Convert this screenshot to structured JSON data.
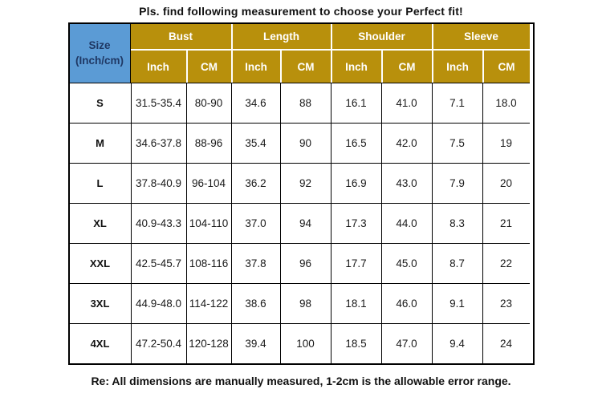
{
  "title": "Pls. find following measurement to choose your Perfect fit!",
  "footer_note": "Re: All dimensions are manually measured, 1-2cm is the allowable error range.",
  "colors": {
    "header_gold": "#B8900C",
    "size_cell_blue": "#5B9BD5",
    "size_cell_text": "#1F3864",
    "grid_border": "#000000",
    "header_separator": "#ffffff"
  },
  "table": {
    "size_label": "Size",
    "size_sublabel": "(Inch/cm)",
    "groups": [
      {
        "label": "Bust"
      },
      {
        "label": "Length"
      },
      {
        "label": "Shoulder"
      },
      {
        "label": "Sleeve"
      }
    ],
    "subheaders": [
      "Inch",
      "CM"
    ],
    "rows": [
      {
        "size": "S",
        "values": [
          "31.5-35.4",
          "80-90",
          "34.6",
          "88",
          "16.1",
          "41.0",
          "7.1",
          "18.0"
        ]
      },
      {
        "size": "M",
        "values": [
          "34.6-37.8",
          "88-96",
          "35.4",
          "90",
          "16.5",
          "42.0",
          "7.5",
          "19"
        ]
      },
      {
        "size": "L",
        "values": [
          "37.8-40.9",
          "96-104",
          "36.2",
          "92",
          "16.9",
          "43.0",
          "7.9",
          "20"
        ]
      },
      {
        "size": "XL",
        "values": [
          "40.9-43.3",
          "104-110",
          "37.0",
          "94",
          "17.3",
          "44.0",
          "8.3",
          "21"
        ]
      },
      {
        "size": "XXL",
        "values": [
          "42.5-45.7",
          "108-116",
          "37.8",
          "96",
          "17.7",
          "45.0",
          "8.7",
          "22"
        ]
      },
      {
        "size": "3XL",
        "values": [
          "44.9-48.0",
          "114-122",
          "38.6",
          "98",
          "18.1",
          "46.0",
          "9.1",
          "23"
        ]
      },
      {
        "size": "4XL",
        "values": [
          "47.2-50.4",
          "120-128",
          "39.4",
          "100",
          "18.5",
          "47.0",
          "9.4",
          "24"
        ]
      }
    ]
  }
}
